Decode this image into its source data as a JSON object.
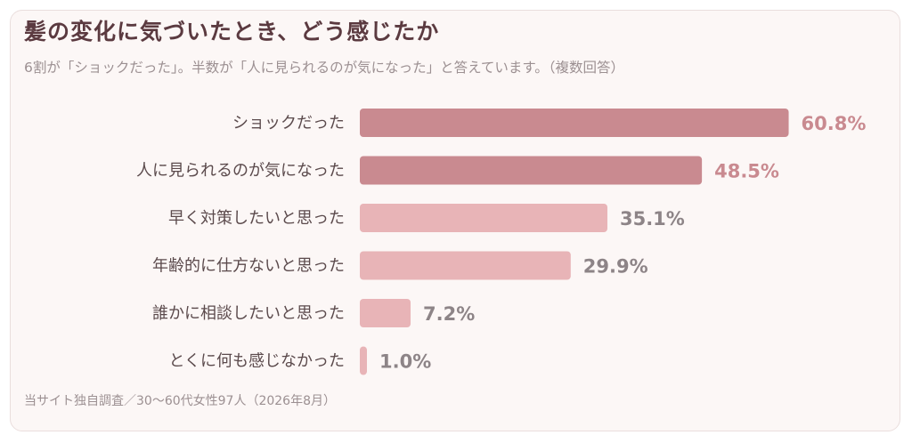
{
  "header": {
    "title": "髪の変化に気づいたとき、どう感じたか",
    "subtitle": "6割が「ショックだった」。半数が「人に見られるのが気になった」と答えています。（複数回答）"
  },
  "footer": {
    "source": "当サイト独自調査／30〜60代女性97人（2026年8月）"
  },
  "colors": {
    "highlight": "#c98a90",
    "normal": "#e8b4b7",
    "value_highlight": "#c98a90",
    "value_normal": "#8d8487"
  },
  "chart_data": {
    "type": "bar",
    "orientation": "horizontal",
    "categories": [
      "ショックだった",
      "人に見られるのが気になった",
      "早く対策したいと思った",
      "年齢的に仕方ないと思った",
      "誰かに相談したいと思った",
      "とくに何も感じなかった"
    ],
    "values": [
      60.8,
      48.5,
      35.1,
      29.9,
      7.2,
      1.0
    ],
    "value_labels": [
      "60.8%",
      "48.5%",
      "35.1%",
      "29.9%",
      "7.2%",
      "1.0%"
    ],
    "highlighted": [
      true,
      true,
      false,
      false,
      false,
      false
    ],
    "xlim": [
      0,
      70
    ],
    "grid": false,
    "legend": "none"
  }
}
